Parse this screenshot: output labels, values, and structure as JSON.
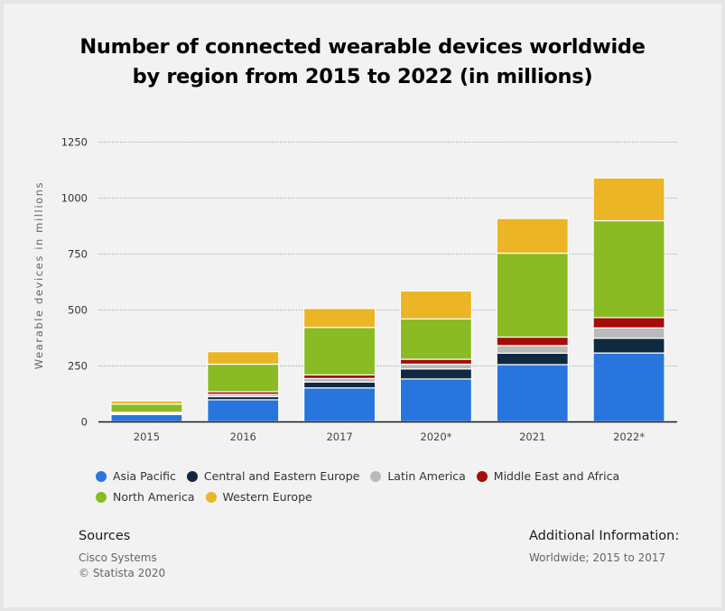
{
  "title_line1": "Number of connected wearable devices worldwide",
  "title_line2": "by region from 2015 to 2022 (in millions)",
  "colors": {
    "Asia Pacific": "#2876dd",
    "Central and Eastern Europe": "#0f2a40",
    "Latin America": "#bababa",
    "Middle East and Africa": "#a50c0c",
    "North America": "#8abb25",
    "Western Europe": "#ecb526",
    "gridline": "#aaaaaa",
    "axis": "#1a1a1a"
  },
  "chart_data": {
    "type": "bar",
    "stacked": true,
    "title": "Number of connected wearable devices worldwide by region from 2015 to 2022 (in millions)",
    "xlabel": "",
    "ylabel": "Wearable devices in millions",
    "ylim": [
      0,
      1250
    ],
    "yticks": [
      0,
      250,
      500,
      750,
      1000,
      1250
    ],
    "ytick_labels": [
      "0",
      "250",
      "500",
      "750",
      "1000",
      "1250"
    ],
    "grid": true,
    "legend_position": "bottom",
    "categories": [
      "2015",
      "2016",
      "2017",
      "2020*",
      "2021",
      "2022*"
    ],
    "series": [
      {
        "name": "Asia Pacific",
        "values": [
          31,
          97,
          150,
          190,
          254,
          306
        ]
      },
      {
        "name": "Central and Eastern Europe",
        "values": [
          4,
          14,
          26,
          45,
          51,
          66
        ]
      },
      {
        "name": "Latin America",
        "values": [
          3,
          10,
          16,
          21,
          34,
          46
        ]
      },
      {
        "name": "Middle East and Africa",
        "values": [
          3,
          12,
          16,
          22,
          38,
          46
        ]
      },
      {
        "name": "North America",
        "values": [
          37,
          123,
          212,
          180,
          375,
          433
        ]
      },
      {
        "name": "Western Europe",
        "values": [
          14,
          56,
          85,
          125,
          155,
          191
        ]
      }
    ]
  },
  "legend_rows": [
    [
      "Asia Pacific",
      "Central and Eastern Europe",
      "Latin America",
      "Middle East and Africa"
    ],
    [
      "North America",
      "Western Europe"
    ]
  ],
  "sources": {
    "heading": "Sources",
    "lines": [
      "Cisco Systems",
      "© Statista 2020"
    ]
  },
  "additional_info": {
    "heading": "Additional Information:",
    "lines": [
      "Worldwide; 2015 to 2017"
    ]
  }
}
